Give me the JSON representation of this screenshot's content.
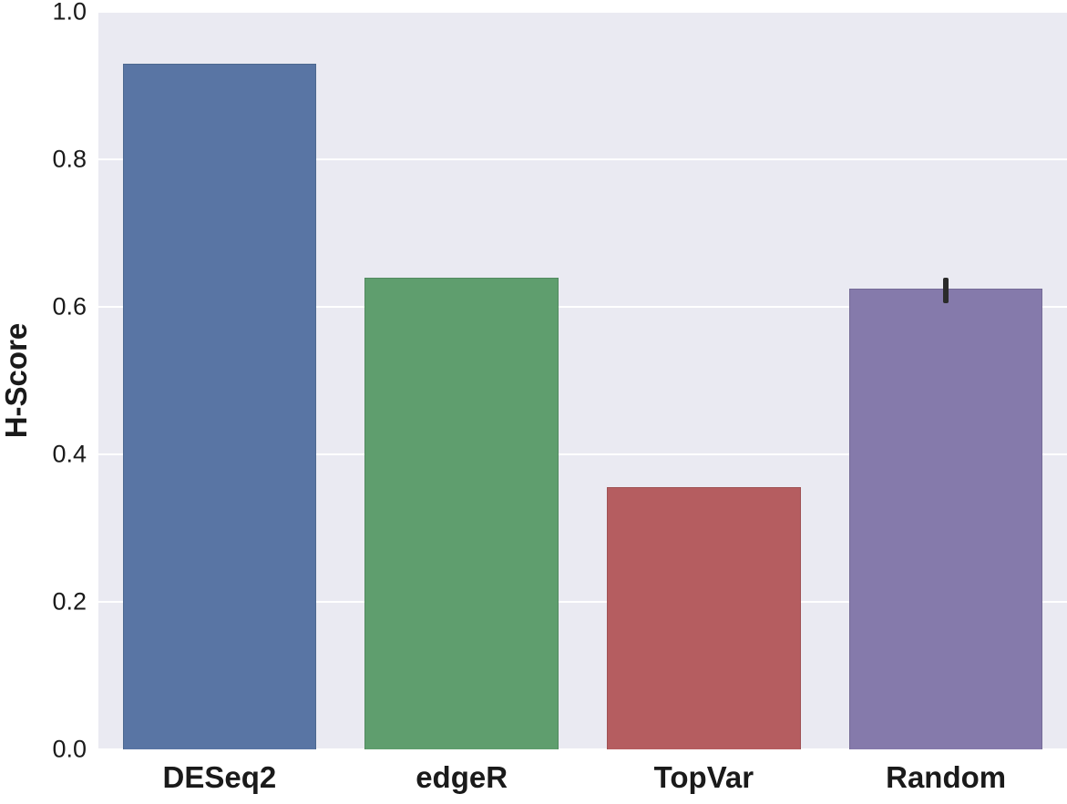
{
  "chart_data": {
    "type": "bar",
    "title": "",
    "categories": [
      "DESeq2",
      "edgeR",
      "TopVar",
      "Random"
    ],
    "values": [
      0.93,
      0.64,
      0.355,
      0.625
    ],
    "errors": [
      null,
      null,
      null,
      {
        "low": 0.605,
        "high": 0.64
      }
    ],
    "bar_colors": [
      "#5975A4",
      "#5F9E6E",
      "#B55D60",
      "#857AAB"
    ],
    "bar_edge_colors": [
      "#4c688f",
      "#528a60",
      "#9f5154",
      "#746a96"
    ],
    "xlabel": "",
    "ylabel": "H-Score",
    "ylim": [
      0.0,
      1.0
    ],
    "yticks": [
      0.0,
      0.2,
      0.4,
      0.6,
      0.8,
      1.0
    ],
    "ytick_labels": [
      "0.0",
      "0.2",
      "0.4",
      "0.6",
      "0.8",
      "1.0"
    ],
    "bar_width_fraction": 0.8,
    "grid": "horizontal",
    "legend": "none",
    "style": "seaborn-darkgrid",
    "colors": {
      "plot_background": "#EAEAF2",
      "figure_background": "#FFFFFF",
      "gridline": "#FFFFFF",
      "text": "#1A1A1A",
      "error_bar": "#2B2B2B"
    }
  }
}
